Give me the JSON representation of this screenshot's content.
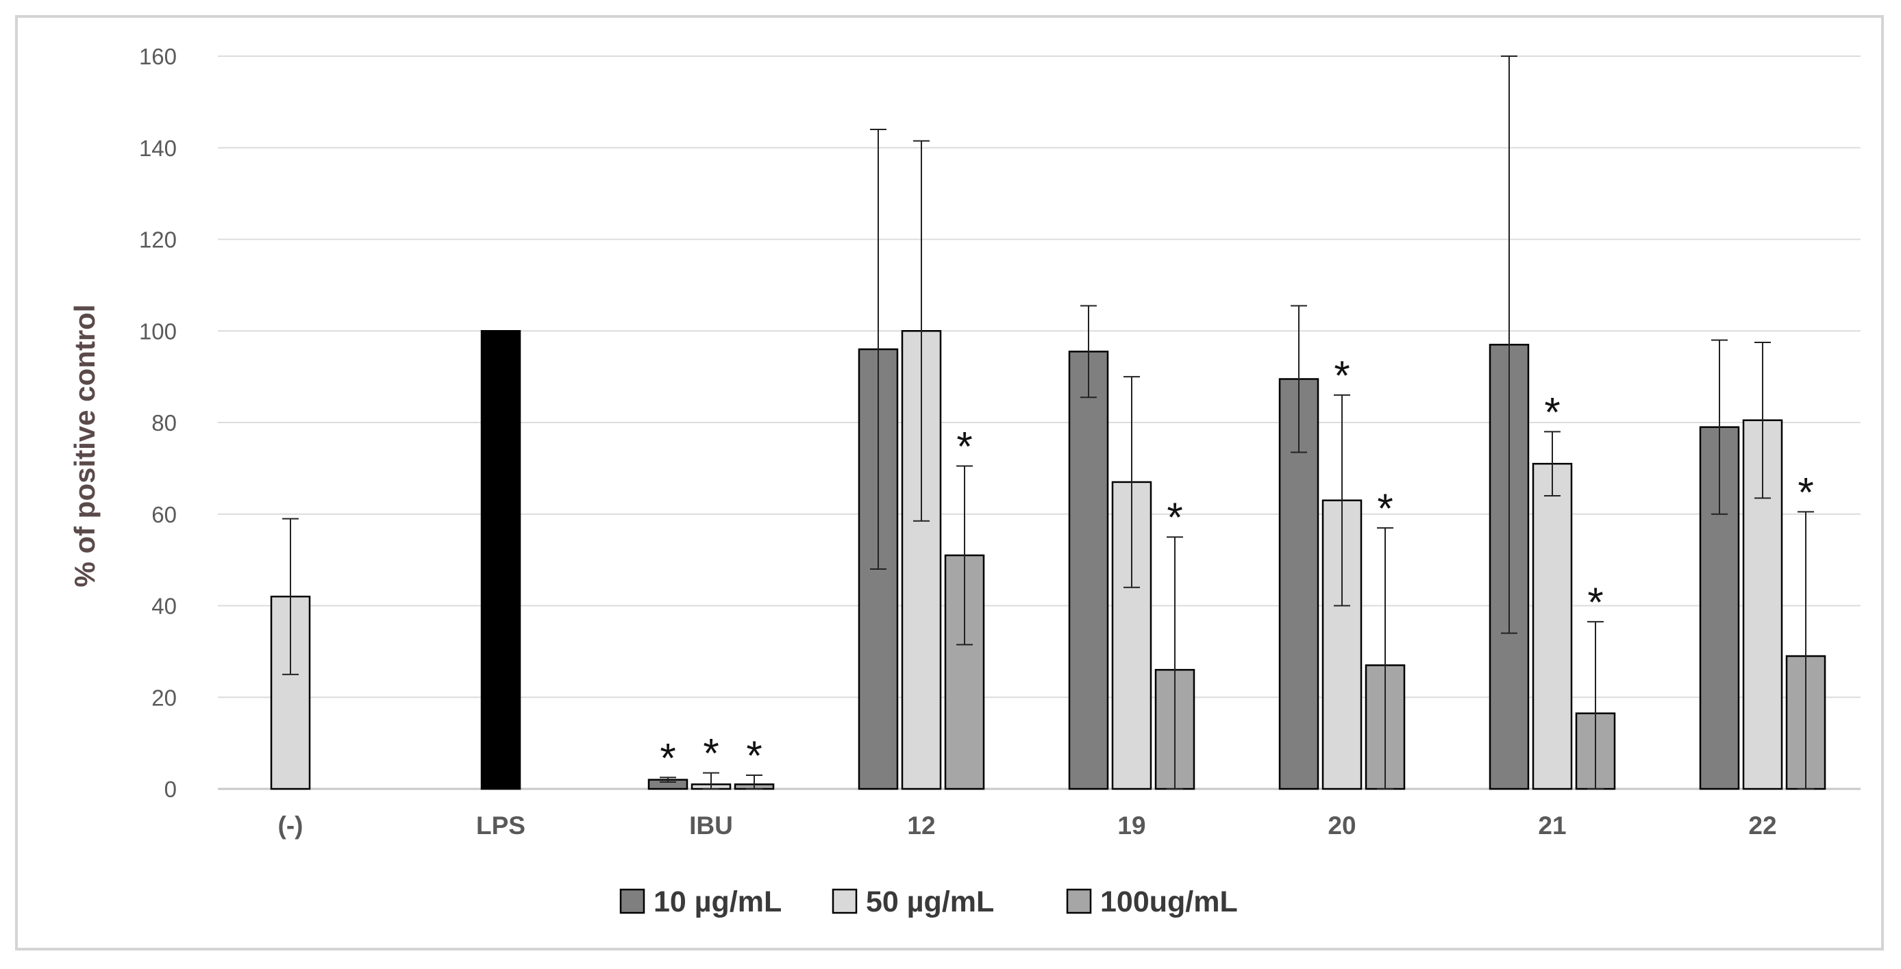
{
  "chart_data": {
    "type": "bar",
    "title": "",
    "xlabel": "",
    "ylabel": "% of positive control",
    "ylim": [
      0,
      160
    ],
    "yticks": [
      0,
      20,
      40,
      60,
      80,
      100,
      120,
      140,
      160
    ],
    "categories": [
      "(-)",
      "LPS",
      "IBU",
      "12",
      "19",
      "20",
      "21",
      "22"
    ],
    "series": [
      {
        "name": "10 µg/mL",
        "color": "#7f7f7f",
        "values": [
          null,
          null,
          2,
          96,
          95.5,
          89.5,
          97,
          79
        ],
        "error": [
          null,
          null,
          0.5,
          48,
          10,
          16,
          63,
          19
        ],
        "significant": [
          false,
          false,
          true,
          false,
          false,
          false,
          false,
          false
        ]
      },
      {
        "name": "50 µg/mL",
        "color": "#d9d9d9",
        "values": [
          42,
          null,
          1,
          100,
          67,
          63,
          71,
          80.5
        ],
        "error": [
          17,
          null,
          2.5,
          41.5,
          23,
          23,
          7,
          17
        ],
        "significant": [
          false,
          false,
          true,
          false,
          false,
          true,
          true,
          false
        ]
      },
      {
        "name": "100ug/mL",
        "color": "#a6a6a6",
        "values": [
          null,
          null,
          1,
          51,
          26,
          27,
          16.5,
          29
        ],
        "error": [
          null,
          null,
          2,
          19.5,
          29,
          30,
          20,
          31.5
        ],
        "significant": [
          false,
          false,
          true,
          true,
          true,
          true,
          true,
          true
        ]
      }
    ],
    "special_bars": [
      {
        "category": "LPS",
        "value": 100,
        "color": "#000000"
      }
    ],
    "significance_marker": "*",
    "legend_position": "bottom"
  }
}
